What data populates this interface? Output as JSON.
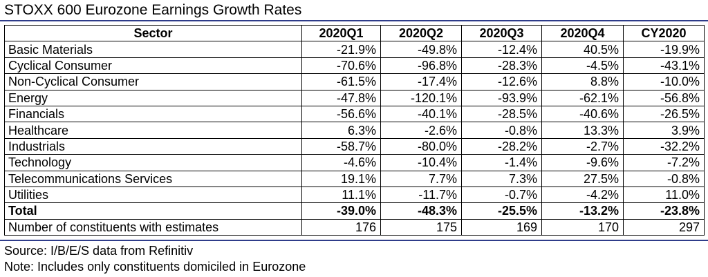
{
  "title": "STOXX 600 Eurozone Earnings Growth Rates",
  "colors": {
    "rule": "#2e3c8a",
    "border": "#000000",
    "text": "#000000"
  },
  "table": {
    "headers": [
      "Sector",
      "2020Q1",
      "2020Q2",
      "2020Q3",
      "2020Q4",
      "CY2020"
    ],
    "rows": [
      {
        "sector": "Basic Materials",
        "values": [
          "-21.9%",
          "-49.8%",
          "-12.4%",
          "40.5%",
          "-19.9%"
        ]
      },
      {
        "sector": "Cyclical Consumer",
        "values": [
          "-70.6%",
          "-96.8%",
          "-28.3%",
          "-4.5%",
          "-43.1%"
        ]
      },
      {
        "sector": "Non-Cyclical Consumer",
        "values": [
          "-61.5%",
          "-17.4%",
          "-12.6%",
          "8.8%",
          "-10.0%"
        ]
      },
      {
        "sector": "Energy",
        "values": [
          "-47.8%",
          "-120.1%",
          "-93.9%",
          "-62.1%",
          "-56.8%"
        ]
      },
      {
        "sector": "Financials",
        "values": [
          "-56.6%",
          "-40.1%",
          "-28.5%",
          "-40.6%",
          "-26.5%"
        ]
      },
      {
        "sector": "Healthcare",
        "values": [
          "6.3%",
          "-2.6%",
          "-0.8%",
          "13.3%",
          "3.9%"
        ]
      },
      {
        "sector": "Industrials",
        "values": [
          "-58.7%",
          "-80.0%",
          "-28.2%",
          "-2.7%",
          "-32.2%"
        ]
      },
      {
        "sector": "Technology",
        "values": [
          "-4.6%",
          "-10.4%",
          "-1.4%",
          "-9.6%",
          "-7.2%"
        ]
      },
      {
        "sector": "Telecommunications Services",
        "values": [
          "19.1%",
          "7.7%",
          "7.3%",
          "27.5%",
          "-0.8%"
        ]
      },
      {
        "sector": "Utilities",
        "values": [
          "11.1%",
          "-11.7%",
          "-0.7%",
          "-4.2%",
          "11.0%"
        ]
      }
    ],
    "total": {
      "sector": "Total",
      "values": [
        "-39.0%",
        "-48.3%",
        "-25.5%",
        "-13.2%",
        "-23.8%"
      ]
    },
    "constituents": {
      "sector": "Number of constituents with estimates",
      "values": [
        "176",
        "175",
        "169",
        "170",
        "297"
      ]
    }
  },
  "source": "Source: I/B/E/S data from Refinitiv",
  "note": "Note: Includes only constituents domiciled in Eurozone"
}
